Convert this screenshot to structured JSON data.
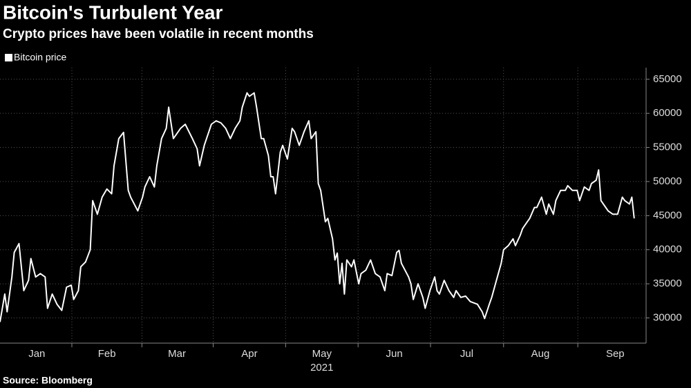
{
  "chart_data": {
    "type": "line",
    "title": "Bitcoin's Turbulent Year",
    "subtitle": "Crypto prices have been volatile in recent months",
    "source": "Source: Bloomberg",
    "x_axis_label": "2021",
    "x": [
      0,
      2,
      3,
      5,
      6,
      8,
      10,
      12,
      13,
      15,
      17,
      19,
      20,
      22,
      24,
      26,
      28,
      30,
      31,
      33,
      34,
      36,
      38,
      39,
      41,
      43,
      45,
      47,
      48,
      50,
      52,
      54,
      55,
      58,
      60,
      61,
      63,
      65,
      66,
      68,
      70,
      71,
      73,
      74,
      76,
      78,
      81,
      83,
      84,
      86,
      89,
      91,
      93,
      95,
      97,
      99,
      101,
      102,
      104,
      105,
      107,
      108,
      110,
      111,
      113,
      114,
      115,
      116,
      118,
      119,
      121,
      123,
      124,
      126,
      128,
      130,
      131,
      133,
      134,
      135,
      137,
      138,
      140,
      141,
      142,
      143,
      144,
      145,
      146,
      148,
      149,
      151,
      152,
      154,
      156,
      158,
      160,
      162,
      163,
      165,
      167,
      168,
      169,
      172,
      173,
      174,
      176,
      178,
      179,
      181,
      183,
      184,
      185,
      187,
      189,
      191,
      192,
      194,
      196,
      198,
      201,
      203,
      204,
      206,
      207,
      209,
      211,
      212,
      214,
      216,
      217,
      219,
      220,
      222,
      223,
      225,
      226,
      228,
      230,
      231,
      233,
      234,
      236,
      238,
      239,
      241,
      243,
      244,
      246,
      248,
      249,
      251,
      252,
      253,
      255,
      256,
      258,
      260,
      262,
      263,
      265,
      266,
      267
    ],
    "series": [
      {
        "name": "Bitcoin price",
        "color": "#ffffff",
        "values": [
          29400,
          33500,
          30900,
          36000,
          39600,
          40900,
          34000,
          35500,
          38700,
          36000,
          36500,
          36000,
          31400,
          33500,
          32000,
          31100,
          34500,
          34800,
          32700,
          34000,
          37500,
          38200,
          40000,
          47200,
          45200,
          47700,
          48900,
          48200,
          52300,
          56300,
          57200,
          48700,
          47700,
          45700,
          47700,
          49200,
          50700,
          49200,
          52300,
          56300,
          57800,
          60900,
          56300,
          56800,
          57800,
          58400,
          56300,
          54800,
          52300,
          55300,
          58400,
          58900,
          58600,
          57800,
          56300,
          57800,
          58900,
          60900,
          63000,
          62500,
          63000,
          60900,
          56300,
          56300,
          53800,
          50700,
          50700,
          48200,
          54300,
          55300,
          53300,
          57800,
          57300,
          55300,
          57300,
          58900,
          56300,
          57300,
          49700,
          48700,
          44100,
          44600,
          41600,
          38500,
          39500,
          35000,
          38000,
          33500,
          38500,
          37500,
          38500,
          35000,
          36500,
          37000,
          38500,
          36500,
          36000,
          34000,
          36500,
          36200,
          39600,
          39900,
          38000,
          36000,
          35000,
          32700,
          35000,
          33000,
          31400,
          34000,
          36000,
          34000,
          33500,
          35500,
          34000,
          33000,
          34000,
          33000,
          33200,
          32400,
          32000,
          30900,
          29900,
          32000,
          33000,
          35500,
          38000,
          40000,
          40600,
          41600,
          40600,
          42100,
          43100,
          44100,
          44600,
          46200,
          46200,
          47700,
          45200,
          46700,
          45200,
          47200,
          48700,
          48700,
          49400,
          48700,
          48700,
          47200,
          49200,
          48700,
          49700,
          50200,
          51700,
          47200,
          46200,
          45700,
          45200,
          45200,
          47700,
          47200,
          46700,
          47700,
          44600
        ]
      }
    ],
    "xlim": [
      0,
      272
    ],
    "xticks": [
      {
        "value": 15.5,
        "label": "Jan"
      },
      {
        "value": 45,
        "label": "Feb"
      },
      {
        "value": 74.5,
        "label": "Mar"
      },
      {
        "value": 105,
        "label": "Apr"
      },
      {
        "value": 135.5,
        "label": "May"
      },
      {
        "value": 166,
        "label": "Jun"
      },
      {
        "value": 196.5,
        "label": "Jul"
      },
      {
        "value": 227.5,
        "label": "Aug"
      },
      {
        "value": 259,
        "label": "Sep"
      }
    ],
    "ylim": [
      26300,
      66700
    ],
    "yticks": [
      30000,
      35000,
      40000,
      45000,
      50000,
      55000,
      60000,
      65000
    ],
    "grid": true
  }
}
